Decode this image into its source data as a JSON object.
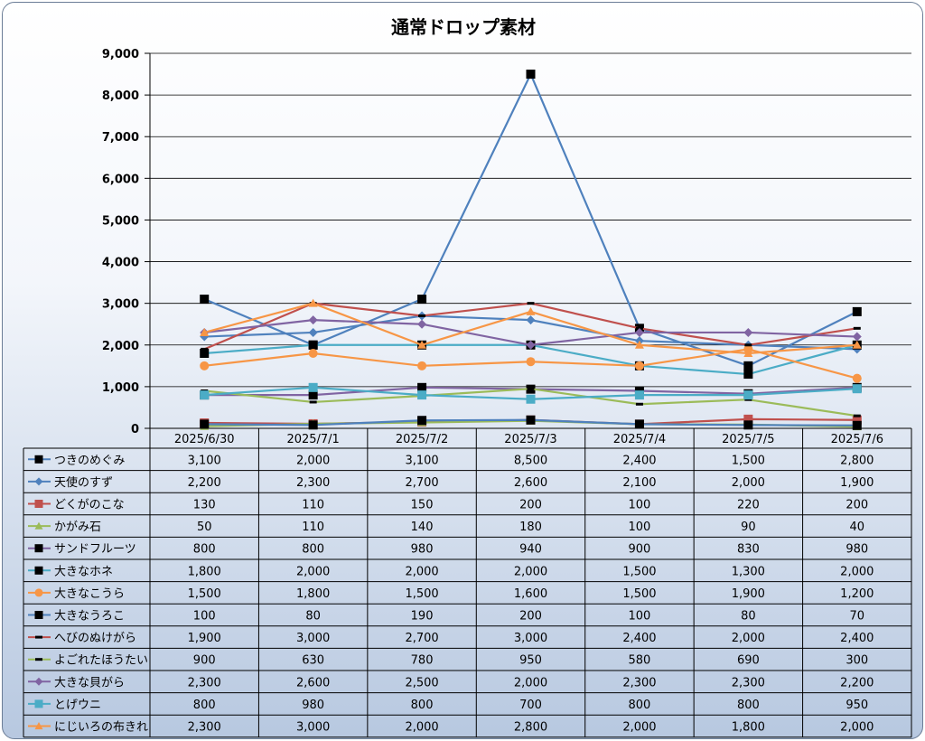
{
  "chart_data": {
    "type": "line",
    "title": "通常ドロップ素材",
    "categories": [
      "2025/6/30",
      "2025/7/1",
      "2025/7/2",
      "2025/7/3",
      "2025/7/4",
      "2025/7/5",
      "2025/7/6"
    ],
    "ylim": [
      0,
      9000
    ],
    "yticks": [
      "0",
      "1,000",
      "2,000",
      "3,000",
      "4,000",
      "5,000",
      "6,000",
      "7,000",
      "8,000",
      "9,000"
    ],
    "grid": true,
    "legend": "data-table",
    "series": [
      {
        "name": "つきのめぐみ",
        "color": "#000000",
        "line": "#4f81bd",
        "marker": "square",
        "values": [
          3100,
          2000,
          3100,
          8500,
          2400,
          1500,
          2800
        ],
        "labels": [
          "3,100",
          "2,000",
          "3,100",
          "8,500",
          "2,400",
          "1,500",
          "2,800"
        ]
      },
      {
        "name": "天使のすず",
        "color": "#4f81bd",
        "line": "#4f81bd",
        "marker": "diamond",
        "values": [
          2200,
          2300,
          2700,
          2600,
          2100,
          2000,
          1900
        ],
        "labels": [
          "2,200",
          "2,300",
          "2,700",
          "2,600",
          "2,100",
          "2,000",
          "1,900"
        ]
      },
      {
        "name": "どくがのこな",
        "color": "#c0504d",
        "line": "#c0504d",
        "marker": "square",
        "values": [
          130,
          110,
          150,
          200,
          100,
          220,
          200
        ],
        "labels": [
          "130",
          "110",
          "150",
          "200",
          "100",
          "220",
          "200"
        ]
      },
      {
        "name": "かがみ石",
        "color": "#9bbb59",
        "line": "#9bbb59",
        "marker": "triangle",
        "values": [
          50,
          110,
          140,
          180,
          100,
          90,
          40
        ],
        "labels": [
          "50",
          "110",
          "140",
          "180",
          "100",
          "90",
          "40"
        ]
      },
      {
        "name": "サンドフルーツ",
        "color": "#000000",
        "line": "#8064a2",
        "marker": "square",
        "values": [
          800,
          800,
          980,
          940,
          900,
          830,
          980
        ],
        "labels": [
          "800",
          "800",
          "980",
          "940",
          "900",
          "830",
          "980"
        ]
      },
      {
        "name": "大きなホネ",
        "color": "#000000",
        "line": "#4bacc6",
        "marker": "square",
        "values": [
          1800,
          2000,
          2000,
          2000,
          1500,
          1300,
          2000
        ],
        "labels": [
          "1,800",
          "2,000",
          "2,000",
          "2,000",
          "1,500",
          "1,300",
          "2,000"
        ]
      },
      {
        "name": "大きなこうら",
        "color": "#f79646",
        "line": "#f79646",
        "marker": "circle",
        "values": [
          1500,
          1800,
          1500,
          1600,
          1500,
          1900,
          1200
        ],
        "labels": [
          "1,500",
          "1,800",
          "1,500",
          "1,600",
          "1,500",
          "1,900",
          "1,200"
        ]
      },
      {
        "name": "大きなうろこ",
        "color": "#000000",
        "line": "#4f81bd",
        "marker": "square",
        "values": [
          100,
          80,
          190,
          200,
          100,
          80,
          70
        ],
        "labels": [
          "100",
          "80",
          "190",
          "200",
          "100",
          "80",
          "70"
        ]
      },
      {
        "name": "へびのぬけがら",
        "color": "#000000",
        "line": "#c0504d",
        "marker": "dash",
        "values": [
          1900,
          3000,
          2700,
          3000,
          2400,
          2000,
          2400
        ],
        "labels": [
          "1,900",
          "3,000",
          "2,700",
          "3,000",
          "2,400",
          "2,000",
          "2,400"
        ]
      },
      {
        "name": "よごれたほうたい",
        "color": "#000000",
        "line": "#9bbb59",
        "marker": "dash",
        "values": [
          900,
          630,
          780,
          950,
          580,
          690,
          300
        ],
        "labels": [
          "900",
          "630",
          "780",
          "950",
          "580",
          "690",
          "300"
        ]
      },
      {
        "name": "大きな貝がら",
        "color": "#8064a2",
        "line": "#8064a2",
        "marker": "diamond",
        "values": [
          2300,
          2600,
          2500,
          2000,
          2300,
          2300,
          2200
        ],
        "labels": [
          "2,300",
          "2,600",
          "2,500",
          "2,000",
          "2,300",
          "2,300",
          "2,200"
        ]
      },
      {
        "name": "とげウニ",
        "color": "#4bacc6",
        "line": "#4bacc6",
        "marker": "square",
        "values": [
          800,
          980,
          800,
          700,
          800,
          800,
          950
        ],
        "labels": [
          "800",
          "980",
          "800",
          "700",
          "800",
          "800",
          "950"
        ]
      },
      {
        "name": "にじいろの布きれ",
        "color": "#f79646",
        "line": "#f79646",
        "marker": "triangle",
        "values": [
          2300,
          3000,
          2000,
          2800,
          2000,
          1800,
          2000
        ],
        "labels": [
          "2,300",
          "3,000",
          "2,000",
          "2,800",
          "2,000",
          "1,800",
          "2,000"
        ]
      }
    ]
  }
}
